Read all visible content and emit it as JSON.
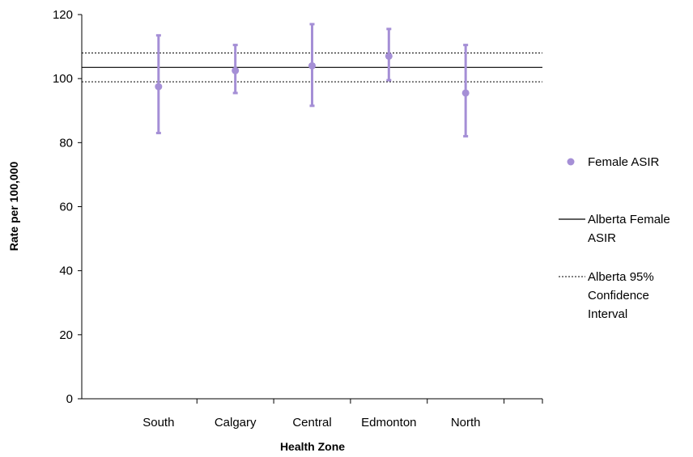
{
  "chart_data": {
    "type": "scatter",
    "title": "",
    "xlabel": "Health Zone",
    "ylabel": "Rate per 100,000",
    "categories": [
      "South",
      "Calgary",
      "Central",
      "Edmonton",
      "North"
    ],
    "ylim": [
      0,
      120
    ],
    "yticks": [
      0,
      20,
      40,
      60,
      80,
      100,
      120
    ],
    "series": [
      {
        "name": "Female ASIR",
        "values": [
          97.5,
          102.5,
          104.0,
          107.0,
          95.5
        ],
        "ci_lower": [
          83.0,
          95.5,
          91.5,
          99.5,
          82.0
        ],
        "ci_upper": [
          113.5,
          110.5,
          117.0,
          115.5,
          110.5
        ],
        "color": "#a58fd6"
      }
    ],
    "reference_lines": [
      {
        "name": "Alberta Female ASIR",
        "value": 103.5,
        "style": "solid"
      },
      {
        "name": "Alberta 95% Confidence Interval",
        "lower": 99.0,
        "upper": 108.0,
        "style": "dotted"
      }
    ],
    "legend": {
      "placement": "right",
      "entries": [
        {
          "lines": [
            "Female ASIR"
          ]
        },
        {
          "lines": [
            "Alberta Female",
            "ASIR"
          ]
        },
        {
          "lines": [
            "Alberta 95%",
            "Confidence",
            "Interval"
          ]
        }
      ]
    },
    "grid": false
  }
}
